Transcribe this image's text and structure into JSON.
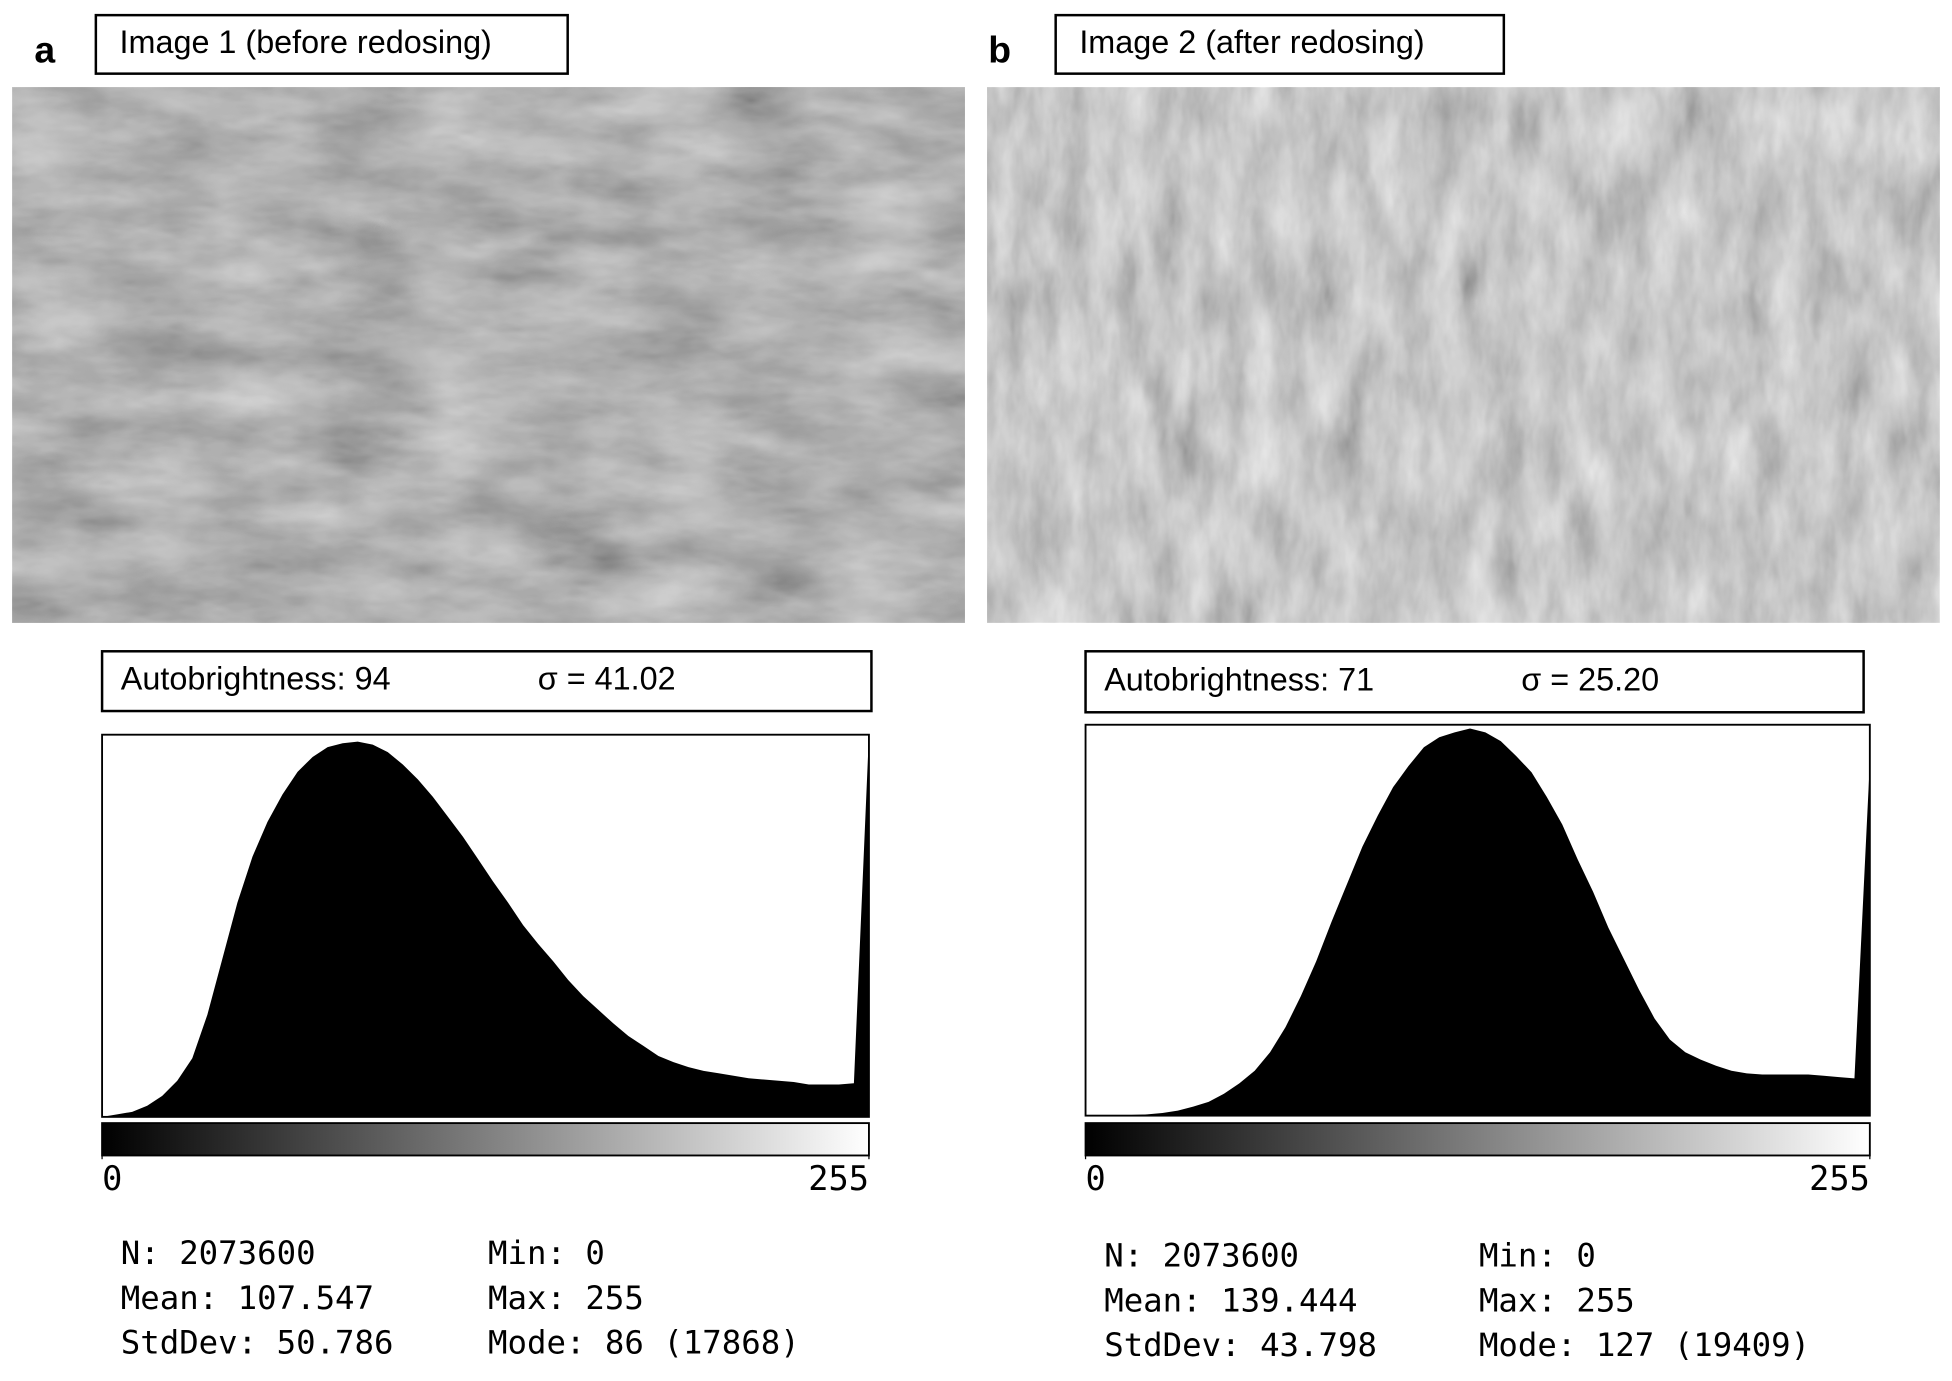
{
  "chart_data": [
    {
      "type": "area",
      "panel": "a",
      "title": "Image 1 (before redosing)",
      "annotations": [
        "Autobrightness: 94",
        "σ = 41.02"
      ],
      "x": [
        0,
        5,
        10,
        15,
        20,
        25,
        30,
        35,
        40,
        45,
        50,
        55,
        60,
        65,
        70,
        75,
        80,
        85,
        90,
        95,
        100,
        105,
        110,
        115,
        120,
        125,
        130,
        135,
        140,
        145,
        150,
        155,
        160,
        165,
        170,
        175,
        180,
        185,
        190,
        195,
        200,
        205,
        210,
        215,
        220,
        225,
        230,
        235,
        240,
        245,
        250,
        255
      ],
      "values": [
        0,
        120,
        240,
        530,
        1000,
        1720,
        2790,
        4860,
        7530,
        10200,
        12390,
        14050,
        15360,
        16430,
        17140,
        17610,
        17790,
        17870,
        17730,
        17370,
        16780,
        16070,
        15240,
        14290,
        13340,
        12280,
        11210,
        10200,
        9130,
        8240,
        7410,
        6520,
        5750,
        5100,
        4450,
        3850,
        3380,
        2900,
        2610,
        2370,
        2190,
        2080,
        1960,
        1840,
        1780,
        1720,
        1660,
        1540,
        1540,
        1540,
        1600,
        18200
      ],
      "color": "#000000",
      "xlim": [
        0,
        255
      ],
      "xticks": [
        0,
        255
      ],
      "ylim": [
        0,
        18200
      ],
      "stats": [
        [
          "N: 2073600",
          "Min: 0"
        ],
        [
          "Mean: 107.547",
          "Max: 255"
        ],
        [
          "StdDev: 50.786",
          "Mode: 86 (17868)"
        ]
      ]
    },
    {
      "type": "area",
      "panel": "b",
      "title": "Image 2 (after redosing)",
      "annotations": [
        "Autobrightness: 71",
        "σ = 25.20"
      ],
      "x": [
        0,
        5,
        10,
        15,
        20,
        25,
        30,
        35,
        40,
        45,
        50,
        55,
        60,
        65,
        70,
        75,
        80,
        85,
        90,
        95,
        100,
        105,
        110,
        115,
        120,
        125,
        130,
        135,
        140,
        145,
        150,
        155,
        160,
        165,
        170,
        175,
        180,
        185,
        190,
        195,
        200,
        205,
        210,
        215,
        220,
        225,
        230,
        235,
        240,
        245,
        250,
        255
      ],
      "values": [
        0,
        0,
        0,
        30,
        60,
        130,
        250,
        450,
        690,
        1100,
        1620,
        2250,
        3180,
        4430,
        5990,
        7740,
        9730,
        11610,
        13480,
        15040,
        16470,
        17530,
        18470,
        18970,
        19220,
        19410,
        19220,
        18780,
        18030,
        17220,
        15970,
        14600,
        12850,
        11230,
        9420,
        7860,
        6300,
        4870,
        3810,
        3180,
        2810,
        2500,
        2250,
        2120,
        2060,
        2060,
        2060,
        2060,
        2000,
        1930,
        1870,
        17720
      ],
      "color": "#000000",
      "xlim": [
        0,
        255
      ],
      "xticks": [
        0,
        255
      ],
      "ylim": [
        0,
        19600
      ],
      "stats": [
        [
          "N: 2073600",
          "Min: 0"
        ],
        [
          "Mean: 139.444",
          "Max: 255"
        ],
        [
          "StdDev: 43.798",
          "Mode: 127 (19409)"
        ]
      ]
    }
  ]
}
